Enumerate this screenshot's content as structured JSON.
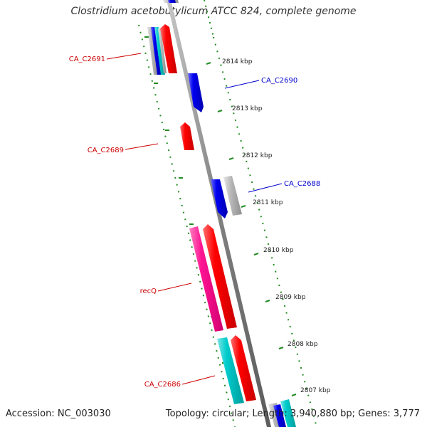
{
  "title": "Clostridium acetobutylicum ATCC 824, complete genome",
  "accession": "Accession: NC_003030",
  "topology": "Topology: circular; Length: 3,940,880 bp; Genes: 3,777",
  "colors": {
    "red": "#ff0000",
    "blue": "#0000ee",
    "magenta": "#ff1493",
    "cyan": "#00cccc",
    "gray": "#b0b0b0",
    "backbone": "#808080",
    "tick": "#228b22"
  },
  "ruler": [
    {
      "kbp": 2814,
      "label": "2814 kbp"
    },
    {
      "kbp": 2813,
      "label": "2813 kbp"
    },
    {
      "kbp": 2812,
      "label": "2812 kbp"
    },
    {
      "kbp": 2811,
      "label": "2811 kbp"
    },
    {
      "kbp": 2810,
      "label": "2810 kbp"
    },
    {
      "kbp": 2809,
      "label": "2809 kbp"
    },
    {
      "kbp": 2808,
      "label": "2808 kbp"
    },
    {
      "kbp": 2807,
      "label": "2807 kbp"
    }
  ],
  "gene_labels": [
    {
      "name": "CA_C2691",
      "color": "#cc0000"
    },
    {
      "name": "CA_C2690",
      "color": "#0000cc"
    },
    {
      "name": "CA_C2689",
      "color": "#cc0000"
    },
    {
      "name": "CA_C2688",
      "color": "#0000cc"
    },
    {
      "name": "recQ",
      "color": "#cc0000"
    },
    {
      "name": "CA_C2686",
      "color": "#cc0000"
    }
  ]
}
